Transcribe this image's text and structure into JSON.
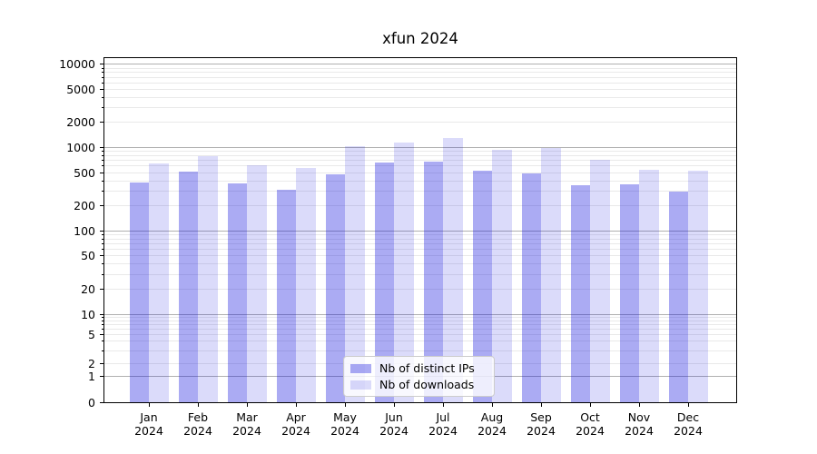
{
  "chart_data": {
    "type": "bar",
    "title": "xfun 2024",
    "categories": [
      "Jan 2024",
      "Feb 2024",
      "Mar 2024",
      "Apr 2024",
      "May 2024",
      "Jun 2024",
      "Jul 2024",
      "Aug 2024",
      "Sep 2024",
      "Oct 2024",
      "Nov 2024",
      "Dec 2024"
    ],
    "series": [
      {
        "name": "Nb of distinct IPs",
        "values": [
          380,
          515,
          370,
          315,
          475,
          655,
          680,
          535,
          490,
          350,
          365,
          300
        ]
      },
      {
        "name": "Nb of downloads",
        "values": [
          650,
          795,
          610,
          565,
          1030,
          1160,
          1300,
          930,
          990,
          710,
          545,
          535
        ]
      }
    ],
    "xlabel": "",
    "ylabel": "",
    "yscale": "symlog",
    "ylim": [
      0,
      12500
    ],
    "yticks": [
      0,
      1,
      2,
      5,
      10,
      20,
      50,
      100,
      200,
      500,
      1000,
      2000,
      5000,
      10000
    ],
    "grid": true,
    "legend_position": "lower center"
  },
  "colors": {
    "bar_ips": "rgba(13,13,220,0.35)",
    "bar_downloads": "rgba(13,13,220,0.15)",
    "grid_major": "#b0b0b0",
    "grid_minor": "#e9e9e9",
    "spine": "#000000",
    "background": "#ffffff"
  }
}
